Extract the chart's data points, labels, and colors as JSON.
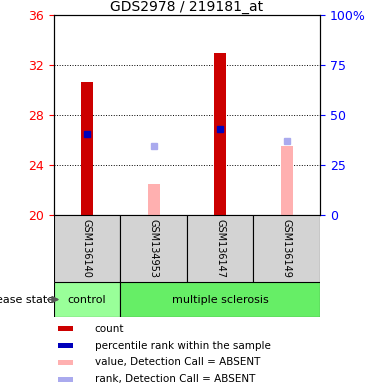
{
  "title": "GDS2978 / 219181_at",
  "samples": [
    "GSM136140",
    "GSM134953",
    "GSM136147",
    "GSM136149"
  ],
  "groups": [
    "control",
    "multiple sclerosis",
    "multiple sclerosis",
    "multiple sclerosis"
  ],
  "ylim": [
    20,
    36
  ],
  "yticks": [
    20,
    24,
    28,
    32,
    36
  ],
  "y2lim": [
    0,
    100
  ],
  "y2ticks": [
    0,
    25,
    50,
    75,
    100
  ],
  "bar_values": [
    30.7,
    null,
    33.0,
    null
  ],
  "bar_ranks": [
    26.5,
    null,
    26.9,
    null
  ],
  "absent_values": [
    null,
    22.5,
    null,
    25.5
  ],
  "absent_ranks": [
    null,
    25.5,
    null,
    25.9
  ],
  "bar_color": "#cc0000",
  "rank_color": "#0000bb",
  "absent_bar_color": "#ffb0b0",
  "absent_rank_color": "#aaaaee",
  "group_colors": {
    "control": "#99ff99",
    "multiple sclerosis": "#66ee66"
  },
  "group_segs": [
    [
      "control",
      0,
      0
    ],
    [
      "multiple sclerosis",
      1,
      3
    ]
  ],
  "legend_items": [
    {
      "label": "count",
      "color": "#cc0000"
    },
    {
      "label": "percentile rank within the sample",
      "color": "#0000bb"
    },
    {
      "label": "value, Detection Call = ABSENT",
      "color": "#ffb0b0"
    },
    {
      "label": "rank, Detection Call = ABSENT",
      "color": "#aaaaee"
    }
  ],
  "disease_label": "disease state",
  "figsize": [
    3.7,
    3.84
  ],
  "dpi": 100,
  "bar_width": 0.18
}
